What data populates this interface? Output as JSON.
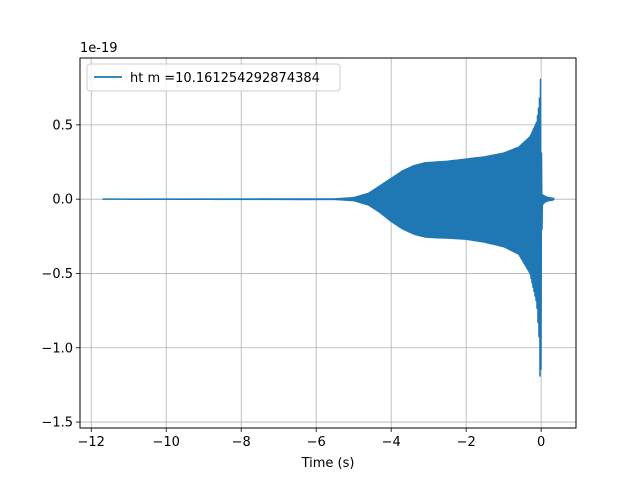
{
  "chart_data": {
    "type": "line",
    "title": "",
    "xlabel": "Time (s)",
    "ylabel": "",
    "y_offset_text": "1e-19",
    "xlim": [
      -12.3,
      0.93
    ],
    "ylim": [
      -1.54,
      0.95
    ],
    "y_scale_factor": 1e-19,
    "xticks": [
      -12,
      -10,
      -8,
      -6,
      -4,
      -2,
      0
    ],
    "xtick_labels": [
      "−12",
      "−10",
      "−8",
      "−6",
      "−4",
      "−2",
      "0"
    ],
    "yticks": [
      -1.5,
      -1.0,
      -0.5,
      0.0,
      0.5
    ],
    "ytick_labels": [
      "−1.5",
      "−1.0",
      "−0.5",
      "0.0",
      "0.5"
    ],
    "grid": true,
    "legend_position": "upper-left",
    "series": [
      {
        "name": "ht m =10.161254292874384",
        "color": "#1f77b4",
        "x_start": -11.7,
        "x_end": 0.35,
        "envelope_upper": [
          [
            -11.7,
            0.0
          ],
          [
            -5.5,
            0.002
          ],
          [
            -5.0,
            0.01
          ],
          [
            -4.6,
            0.04
          ],
          [
            -4.3,
            0.09
          ],
          [
            -4.0,
            0.14
          ],
          [
            -3.7,
            0.19
          ],
          [
            -3.4,
            0.225
          ],
          [
            -3.1,
            0.245
          ],
          [
            -2.8,
            0.25
          ],
          [
            -2.5,
            0.255
          ],
          [
            -2.0,
            0.27
          ],
          [
            -1.5,
            0.285
          ],
          [
            -1.0,
            0.31
          ],
          [
            -0.6,
            0.35
          ],
          [
            -0.3,
            0.42
          ],
          [
            -0.12,
            0.52
          ],
          [
            -0.05,
            0.65
          ],
          [
            -0.01,
            0.84
          ],
          [
            0.01,
            0.3
          ],
          [
            0.03,
            0.03
          ],
          [
            0.1,
            0.02
          ],
          [
            0.2,
            0.01
          ],
          [
            0.35,
            0.005
          ]
        ],
        "envelope_lower": [
          [
            -11.7,
            0.0
          ],
          [
            -5.5,
            -0.002
          ],
          [
            -5.0,
            -0.01
          ],
          [
            -4.6,
            -0.04
          ],
          [
            -4.3,
            -0.09
          ],
          [
            -4.0,
            -0.15
          ],
          [
            -3.7,
            -0.2
          ],
          [
            -3.4,
            -0.235
          ],
          [
            -3.1,
            -0.255
          ],
          [
            -2.8,
            -0.26
          ],
          [
            -2.5,
            -0.262
          ],
          [
            -2.0,
            -0.27
          ],
          [
            -1.5,
            -0.29
          ],
          [
            -1.0,
            -0.32
          ],
          [
            -0.6,
            -0.37
          ],
          [
            -0.3,
            -0.5
          ],
          [
            -0.12,
            -0.7
          ],
          [
            -0.05,
            -0.95
          ],
          [
            -0.01,
            -1.44
          ],
          [
            0.01,
            -0.5
          ],
          [
            0.03,
            -0.04
          ],
          [
            0.1,
            -0.02
          ],
          [
            0.2,
            -0.01
          ],
          [
            0.35,
            -0.005
          ]
        ]
      }
    ]
  }
}
